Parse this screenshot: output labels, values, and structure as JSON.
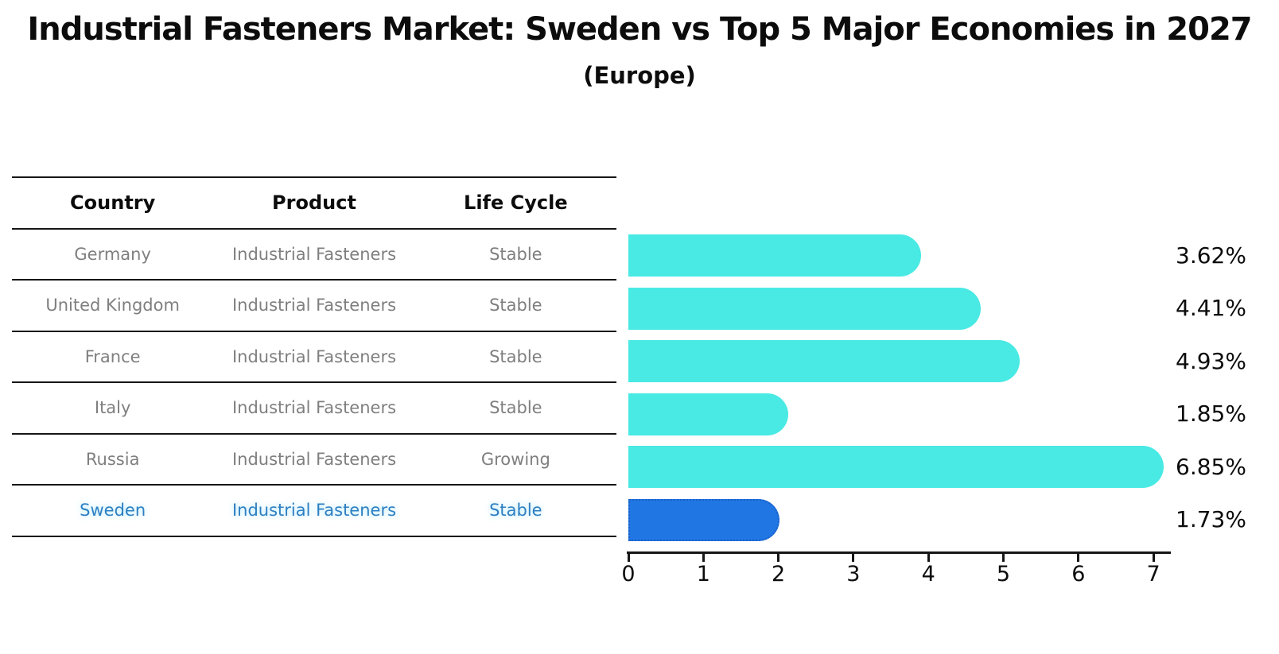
{
  "title": "Industrial Fasteners Market: Sweden vs Top 5 Major Economies in 2027",
  "subtitle": "(Europe)",
  "table": {
    "headers": [
      "Country",
      "Product",
      "Life Cycle"
    ],
    "rows": [
      {
        "country": "Germany",
        "product": "Industrial Fasteners",
        "life_cycle": "Stable",
        "highlight": false
      },
      {
        "country": "United Kingdom",
        "product": "Industrial Fasteners",
        "life_cycle": "Stable",
        "highlight": false
      },
      {
        "country": "France",
        "product": "Industrial Fasteners",
        "life_cycle": "Stable",
        "highlight": false
      },
      {
        "country": "Italy",
        "product": "Industrial Fasteners",
        "life_cycle": "Stable",
        "highlight": false
      },
      {
        "country": "Russia",
        "product": "Industrial Fasteners",
        "life_cycle": "Growing",
        "highlight": false
      },
      {
        "country": "Sweden",
        "product": "Industrial Fasteners",
        "life_cycle": "Stable",
        "highlight": true
      }
    ]
  },
  "chart_data": {
    "type": "bar",
    "orientation": "horizontal",
    "title": "Industrial Fasteners Market: Sweden vs Top 5 Major Economies in 2027",
    "subtitle": "(Europe)",
    "categories": [
      "Germany",
      "United Kingdom",
      "France",
      "Italy",
      "Russia",
      "Sweden"
    ],
    "values": [
      3.62,
      4.41,
      4.93,
      1.85,
      6.85,
      1.73
    ],
    "value_labels": [
      "3.62%",
      "4.41%",
      "4.93%",
      "1.85%",
      "6.85%",
      "1.73%"
    ],
    "xticks": [
      "0",
      "1",
      "2",
      "3",
      "4",
      "5",
      "6",
      "7"
    ],
    "xlim": [
      0,
      7.2
    ],
    "xlabel": "",
    "ylabel": "",
    "grid": false,
    "legend": "none",
    "bar_color": "#49E9E4",
    "highlight_bar_color": "#2076E2",
    "highlight_category": "Sweden"
  },
  "colors": {
    "bar_cyan": "#49E9E4",
    "bar_blue": "#2076E2",
    "highlight_text": "#2e7fc2",
    "row_text": "#7f7f7f",
    "line": "#161616"
  }
}
